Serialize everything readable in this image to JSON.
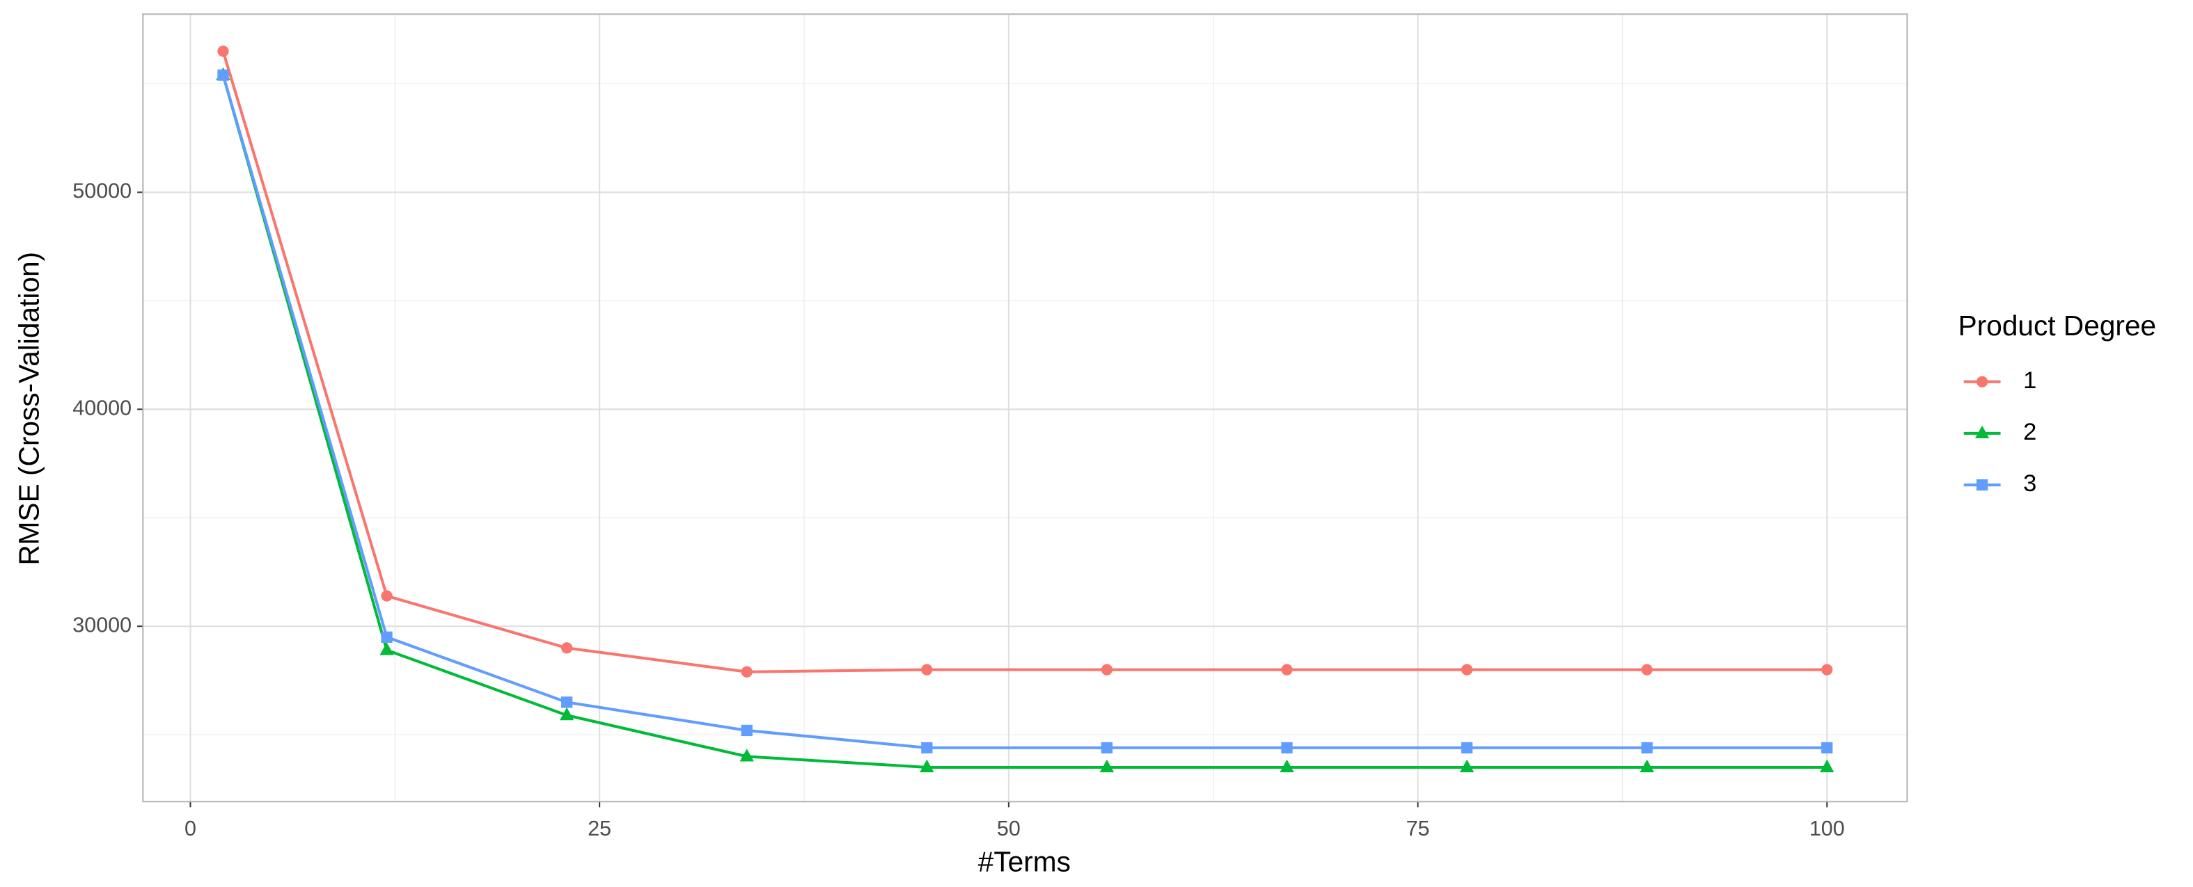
{
  "chart_data": {
    "type": "line",
    "x_label": "#Terms",
    "y_label": "RMSE (Cross-Validation)",
    "legend_title": "Product Degree",
    "legend_position": "right",
    "x": [
      2,
      12,
      23,
      34,
      45,
      56,
      67,
      78,
      89,
      100
    ],
    "series": [
      {
        "name": "1",
        "color": "#F8766D",
        "marker": "circle",
        "values": [
          56500,
          31400,
          29000,
          27900,
          28000,
          28000,
          28000,
          28000,
          28000,
          28000
        ]
      },
      {
        "name": "2",
        "color": "#00BA38",
        "marker": "triangle",
        "values": [
          55400,
          28900,
          25900,
          24000,
          23500,
          23500,
          23500,
          23500,
          23500,
          23500
        ]
      },
      {
        "name": "3",
        "color": "#619CFF",
        "marker": "square",
        "values": [
          55400,
          29500,
          26500,
          25200,
          24400,
          24400,
          24400,
          24400,
          24400,
          24400
        ]
      }
    ],
    "xlim": [
      -2.9,
      104.9
    ],
    "xticks": [
      0,
      25,
      50,
      75,
      100
    ],
    "xticks_minor": [
      12.5,
      37.5,
      62.5,
      87.5
    ],
    "ylim": [
      21920,
      58210
    ],
    "yticks": [
      30000,
      40000,
      50000
    ],
    "yticks_minor": [
      25000,
      35000,
      45000,
      55000
    ],
    "grid": true
  }
}
